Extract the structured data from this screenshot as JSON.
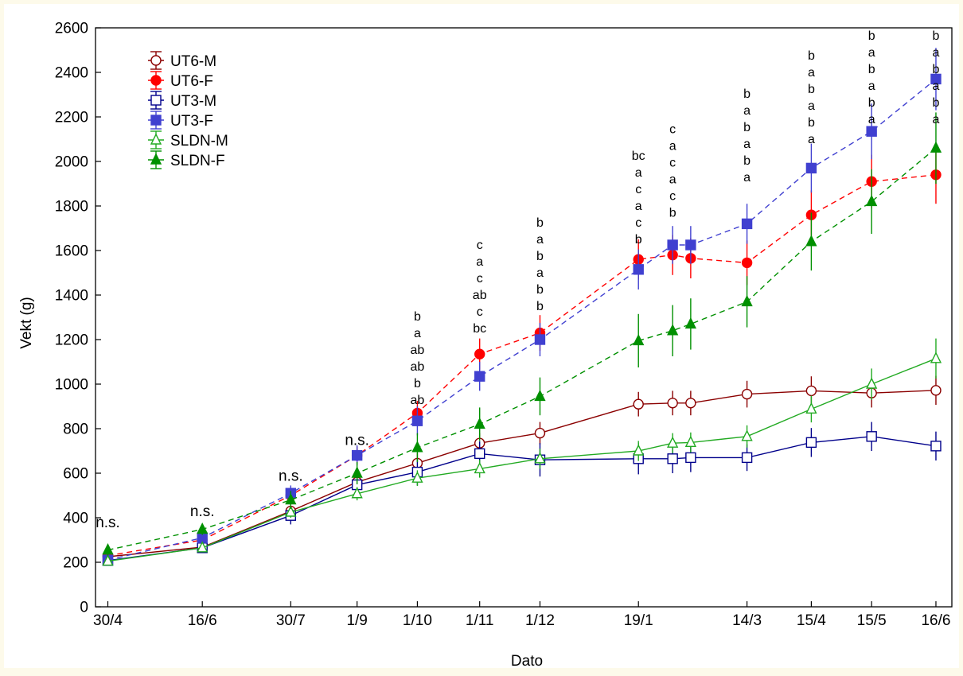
{
  "chart_data": {
    "type": "line",
    "xlabel": "Dato",
    "ylabel": "Vekt (g)",
    "ylim": [
      0,
      2600
    ],
    "yticks": [
      0,
      200,
      400,
      600,
      800,
      1000,
      1200,
      1400,
      1600,
      1800,
      2000,
      2200,
      2400,
      2600
    ],
    "xlim": [
      0,
      406
    ],
    "x_tick_days": [
      0,
      47,
      91,
      124,
      154,
      185,
      215,
      264,
      326,
      358,
      388,
      420
    ],
    "x_tick_labels": [
      "30/4",
      "16/6",
      "30/7",
      "1/9",
      "1/10",
      "1/11",
      "1/12",
      "19/1",
      "14/3",
      "15/4",
      "15/5",
      "16/6"
    ],
    "x_tick_dates": [
      "2000-04-30",
      "2000-06-16",
      "2000-07-30",
      "2000-09-01",
      "2000-10-01",
      "2000-11-01",
      "2000-12-01",
      "2001-01-19",
      "2001-03-14",
      "2001-04-15",
      "2001-05-15",
      "2001-06-16"
    ],
    "x_dates": [
      "2000-04-30",
      "2000-06-16",
      "2000-07-30",
      "2000-09-01",
      "2000-10-01",
      "2000-11-01",
      "2000-12-01",
      "2001-01-19",
      "2001-02-05",
      "2001-02-14",
      "2001-03-14",
      "2001-04-15",
      "2001-05-15",
      "2001-06-16"
    ],
    "legend_position": "top-left",
    "grid": false,
    "series": [
      {
        "name": "UT6-M",
        "color": "#8b0000",
        "marker": "circle-open",
        "dash": false,
        "values": [
          225,
          268,
          430,
          560,
          645,
          735,
          780,
          910,
          915,
          915,
          955,
          970,
          960,
          972
        ],
        "errors": [
          20,
          20,
          30,
          35,
          45,
          45,
          50,
          55,
          55,
          55,
          60,
          65,
          65,
          65
        ]
      },
      {
        "name": "UT6-F",
        "color": "#ff0000",
        "marker": "circle-filled",
        "dash": true,
        "values": [
          230,
          300,
          500,
          680,
          870,
          1135,
          1230,
          1560,
          1580,
          1565,
          1545,
          1760,
          1910,
          1940
        ],
        "errors": [
          25,
          25,
          35,
          40,
          55,
          70,
          80,
          90,
          90,
          90,
          100,
          110,
          120,
          130
        ]
      },
      {
        "name": "UT3-M",
        "color": "#00008b",
        "marker": "square-open",
        "dash": false,
        "values": [
          208,
          265,
          410,
          548,
          605,
          688,
          660,
          665,
          665,
          670,
          670,
          738,
          765,
          722
        ],
        "errors": [
          15,
          20,
          40,
          40,
          60,
          55,
          75,
          70,
          65,
          65,
          60,
          65,
          65,
          65
        ]
      },
      {
        "name": "UT3-F",
        "color": "#4040d0",
        "marker": "square-filled",
        "dash": true,
        "values": [
          210,
          310,
          510,
          680,
          835,
          1035,
          1200,
          1515,
          1625,
          1625,
          1720,
          1970,
          2135,
          2370
        ],
        "errors": [
          25,
          30,
          35,
          45,
          65,
          65,
          75,
          90,
          85,
          85,
          90,
          110,
          125,
          140
        ]
      },
      {
        "name": "SLDN-M",
        "color": "#22aa22",
        "marker": "triangle-open",
        "dash": false,
        "values": [
          205,
          265,
          425,
          508,
          578,
          620,
          665,
          700,
          735,
          738,
          765,
          888,
          1000,
          1115
        ],
        "errors": [
          15,
          15,
          25,
          30,
          35,
          40,
          45,
          45,
          45,
          45,
          50,
          60,
          70,
          90
        ]
      },
      {
        "name": "SLDN-F",
        "color": "#009000",
        "marker": "triangle-filled",
        "dash": true,
        "values": [
          255,
          348,
          480,
          600,
          715,
          820,
          945,
          1195,
          1240,
          1270,
          1370,
          1640,
          1820,
          2060
        ],
        "errors": [
          25,
          25,
          40,
          50,
          65,
          75,
          85,
          120,
          115,
          115,
          115,
          130,
          145,
          160
        ]
      }
    ],
    "annotations": [
      {
        "x_date": "2000-04-30",
        "y_top": 410,
        "lines": [
          "n.s."
        ]
      },
      {
        "x_date": "2000-06-16",
        "y_top": 460,
        "lines": [
          "n.s."
        ]
      },
      {
        "x_date": "2000-07-30",
        "y_top": 620,
        "lines": [
          "n.s."
        ]
      },
      {
        "x_date": "2000-09-01",
        "y_top": 780,
        "lines": [
          "n.s."
        ]
      },
      {
        "x_date": "2000-10-01",
        "y_top": 1340,
        "lines": [
          "b",
          "a",
          "ab",
          "ab",
          "b",
          "ab"
        ]
      },
      {
        "x_date": "2000-11-01",
        "y_top": 1660,
        "lines": [
          "c",
          "a",
          "c",
          "ab",
          "c",
          "bc"
        ]
      },
      {
        "x_date": "2000-12-01",
        "y_top": 1760,
        "lines": [
          "b",
          "a",
          "b",
          "a",
          "b",
          "b"
        ]
      },
      {
        "x_date": "2001-01-19",
        "y_top": 2060,
        "lines": [
          "bc",
          "a",
          "c",
          "a",
          "c",
          "b"
        ]
      },
      {
        "x_date": "2001-02-05",
        "y_top": 2180,
        "lines": [
          "c",
          "a",
          "c",
          "a",
          "c",
          "b"
        ]
      },
      {
        "x_date": "2001-03-14",
        "y_top": 2340,
        "lines": [
          "b",
          "a",
          "b",
          "a",
          "b",
          "a"
        ]
      },
      {
        "x_date": "2001-04-15",
        "y_top": 2510,
        "lines": [
          "b",
          "a",
          "b",
          "a",
          "b",
          "a"
        ]
      },
      {
        "x_date": "2001-05-15",
        "y_top": 2600,
        "lines": [
          "b",
          "a",
          "b",
          "a",
          "b",
          "a"
        ]
      },
      {
        "x_date": "2001-06-16",
        "y_top": 2600,
        "lines": [
          "b",
          "a",
          "b",
          "a",
          "b",
          "a"
        ]
      }
    ]
  }
}
